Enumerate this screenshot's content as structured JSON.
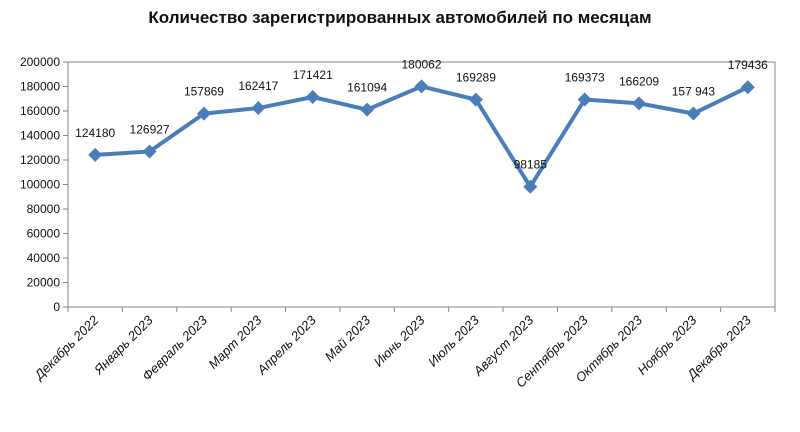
{
  "chart_data": {
    "type": "line",
    "title": "Количество зарегистрированных автомобилей по месяцам",
    "xlabel": "",
    "ylabel": "",
    "categories": [
      "Декабрь 2022",
      "Январь 2023",
      "Февраль 2023",
      "Март 2023",
      "Апрель 2023",
      "Май 2023",
      "Июнь 2023",
      "Июль 2023",
      "Август 2023",
      "Сентябрь 2023",
      "Октябрь 2023",
      "Ноябрь 2023",
      "Декабрь 2023"
    ],
    "series": [
      {
        "values": [
          124180,
          126927,
          157869,
          162417,
          171421,
          161094,
          180062,
          169289,
          98185,
          169373,
          166209,
          157943,
          179436
        ],
        "labels": [
          "124180",
          "126927",
          "157869",
          "162417",
          "171421",
          "161094",
          "180062",
          "169289",
          "98185",
          "169373",
          "166209",
          "157 943",
          "179436"
        ],
        "color": "#4A7EBB",
        "marker": "diamond"
      }
    ],
    "ylim": [
      0,
      200000
    ],
    "yticks": [
      0,
      20000,
      40000,
      60000,
      80000,
      100000,
      120000,
      140000,
      160000,
      180000,
      200000
    ],
    "grid": false,
    "legend": "none"
  }
}
